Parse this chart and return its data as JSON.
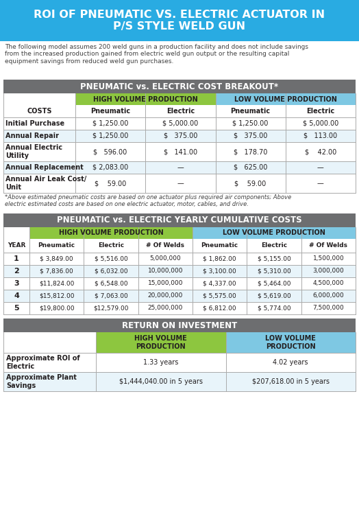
{
  "title_line1": "ROI OF PNEUMATIC VS. ELECTRIC ACTUATOR IN",
  "title_line2": "P/S STYLE WELD GUN",
  "title_bg": "#29ABE2",
  "title_color": "#FFFFFF",
  "intro_text": "The following model assumes 200 weld guns in a production facility and does not include savings\nfrom the increased production gained from electric weld gun output or the resulting capital\nequipment savings from reduced weld gun purchases.",
  "intro_color": "#404040",
  "section1_title": "PNEUMATIC vs. ELECTRIC COST BREAKOUT*",
  "section2_title": "PNEUMATIC vs. ELECTRIC YEARLY CUMULATIVE COSTS",
  "section3_title": "RETURN ON INVESTMENT",
  "section_bg": "#6D6E70",
  "section_color": "#FFFFFF",
  "high_vol_bg": "#8DC63F",
  "high_vol_color": "#231F20",
  "low_vol_bg": "#7EC8E3",
  "low_vol_color": "#231F20",
  "row_white": "#FFFFFF",
  "row_light": "#E8F4FA",
  "border_color": "#AAAAAA",
  "text_dark": "#231F20",
  "bg_color": "#FFFFFF",
  "footnote_color": "#404040",
  "cost_rows": [
    [
      "Initial Purchase",
      "$ 1,250.00",
      "$ 5,000.00",
      "$ 1,250.00",
      "$ 5,000.00"
    ],
    [
      "Annual Repair",
      "$ 1,250.00",
      "$   375.00",
      "$   375.00",
      "$   113.00"
    ],
    [
      "Annual Electric\nUtility",
      "$   596.00",
      "$   141.00",
      "$   178.70",
      "$    42.00"
    ],
    [
      "Annual Replacement",
      "$ 2,083.00",
      "—",
      "$   625.00",
      "—"
    ],
    [
      "Annual Air Leak Cost/\nUnit",
      "$    59.00",
      "—",
      "$    59.00",
      "—"
    ]
  ],
  "footnote": "*Above estimated pneumatic costs are based on one actuator plus required air components; Above\nelectric estimated costs are based on one electric actuator, motor, cables, and drive.",
  "cum_rows": [
    [
      "1",
      "$ 3,849.00",
      "$ 5,516.00",
      "5,000,000",
      "$ 1,862.00",
      "$ 5,155.00",
      "1,500,000"
    ],
    [
      "2",
      "$ 7,836.00",
      "$ 6,032.00",
      "10,000,000",
      "$ 3,100.00",
      "$ 5,310.00",
      "3,000,000"
    ],
    [
      "3",
      "$11,824.00",
      "$ 6,548.00",
      "15,000,000",
      "$ 4,337.00",
      "$ 5,464.00",
      "4,500,000"
    ],
    [
      "4",
      "$15,812.00",
      "$ 7,063.00",
      "20,000,000",
      "$ 5,575.00",
      "$ 5,619.00",
      "6,000,000"
    ],
    [
      "5",
      "$19,800.00",
      "$12,579.00",
      "25,000,000",
      "$ 6,812.00",
      "$ 5,774.00",
      "7,500,000"
    ]
  ],
  "roi_rows": [
    [
      "Approximate ROI of\nElectric",
      "1.33 years",
      "4.02 years"
    ],
    [
      "Approximate Plant\nSavings",
      "$1,444,040.00 in 5 years",
      "$207,618.00 in 5 years"
    ]
  ]
}
